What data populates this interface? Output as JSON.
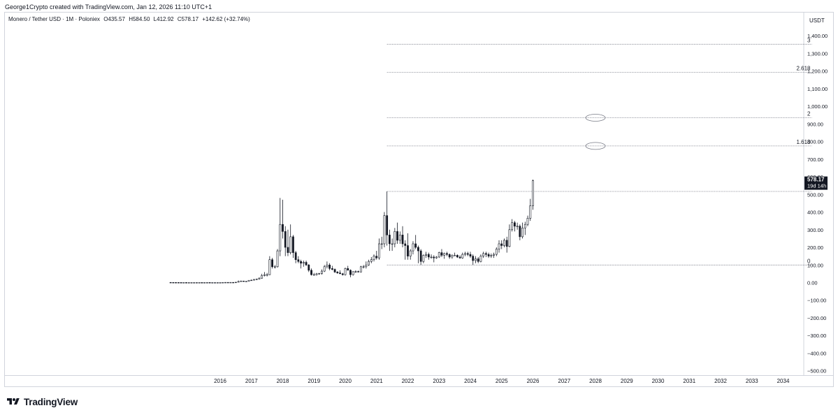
{
  "header": {
    "credit": "George1Crypto created with TradingView.com, Jan 12, 2026 11:10 UTC+1"
  },
  "legend": {
    "pair": "Monero / Tether USD · 1M · Poloniex",
    "open": "O435.57",
    "high": "H584.50",
    "low": "L412.92",
    "close": "C578.17",
    "change": "+142.62 (+32.74%)"
  },
  "price_label": {
    "value": "578.17",
    "countdown": "19d 14h"
  },
  "branding": {
    "name": "TradingView"
  },
  "colors": {
    "text": "#131722",
    "grid_border": "#d1d4dc",
    "fib_line": "#787b86",
    "price_tag_bg": "#131722"
  },
  "chart_data": {
    "type": "candlestick",
    "symbol": "Monero / Tether USD",
    "interval": "1M",
    "exchange": "Poloniex",
    "currency_label": "USDT",
    "ylim": [
      -520,
      1510
    ],
    "y_ticks": [
      -500,
      -400,
      -300,
      -200,
      -100,
      0,
      100,
      200,
      300,
      400,
      500,
      600,
      700,
      800,
      900,
      1000,
      1100,
      1200,
      1300,
      1400
    ],
    "y_tick_labels": [
      "−500.00",
      "−400.00",
      "−300.00",
      "−200.00",
      "−100.00",
      "0.00",
      "100.00",
      "200.00",
      "300.00",
      "400.00",
      "500.00",
      "600.00",
      "700.00",
      "800.00",
      "900.00",
      "1,000.00",
      "1,100.00",
      "1,200.00",
      "1,300.00",
      "1,400.00"
    ],
    "xlim": [
      "2013-05",
      "2035-01"
    ],
    "x_ticks": [
      "2016",
      "2017",
      "2018",
      "2019",
      "2020",
      "2021",
      "2022",
      "2023",
      "2024",
      "2025",
      "2026",
      "2027",
      "2028",
      "2029",
      "2030",
      "2031",
      "2032",
      "2033",
      "2034"
    ],
    "grid": false,
    "fib_extension": {
      "start": "2021-05",
      "end": "2034-12",
      "levels": [
        {
          "label": "0",
          "price": 100
        },
        {
          "label": "1",
          "price": 517
        },
        {
          "label": "1.618",
          "price": 775
        },
        {
          "label": "2",
          "price": 935
        },
        {
          "label": "2.618",
          "price": 1193
        },
        {
          "label": "3",
          "price": 1352
        }
      ]
    },
    "annotations": [
      {
        "type": "ellipse",
        "date": "2028-01",
        "price": 935
      },
      {
        "type": "ellipse",
        "date": "2028-01",
        "price": 775
      }
    ],
    "last_price": 578.17,
    "candles": [
      {
        "t": "2014-06",
        "o": 1.2,
        "h": 1.6,
        "l": 0.9,
        "c": 1.0
      },
      {
        "t": "2014-07",
        "o": 1.0,
        "h": 1.3,
        "l": 0.8,
        "c": 0.9
      },
      {
        "t": "2014-08",
        "o": 0.9,
        "h": 1.1,
        "l": 0.7,
        "c": 0.8
      },
      {
        "t": "2014-09",
        "o": 0.8,
        "h": 1.0,
        "l": 0.6,
        "c": 0.7
      },
      {
        "t": "2014-10",
        "o": 0.7,
        "h": 0.9,
        "l": 0.5,
        "c": 0.6
      },
      {
        "t": "2014-11",
        "o": 0.6,
        "h": 0.8,
        "l": 0.5,
        "c": 0.6
      },
      {
        "t": "2014-12",
        "o": 0.6,
        "h": 0.7,
        "l": 0.4,
        "c": 0.5
      },
      {
        "t": "2015-01",
        "o": 0.5,
        "h": 0.6,
        "l": 0.4,
        "c": 0.5
      },
      {
        "t": "2015-02",
        "o": 0.5,
        "h": 0.6,
        "l": 0.4,
        "c": 0.5
      },
      {
        "t": "2015-03",
        "o": 0.5,
        "h": 0.6,
        "l": 0.4,
        "c": 0.5
      },
      {
        "t": "2015-04",
        "o": 0.5,
        "h": 0.7,
        "l": 0.4,
        "c": 0.6
      },
      {
        "t": "2015-05",
        "o": 0.6,
        "h": 0.7,
        "l": 0.5,
        "c": 0.6
      },
      {
        "t": "2015-06",
        "o": 0.6,
        "h": 0.7,
        "l": 0.5,
        "c": 0.5
      },
      {
        "t": "2015-07",
        "o": 0.5,
        "h": 0.8,
        "l": 0.4,
        "c": 0.6
      },
      {
        "t": "2015-08",
        "o": 0.6,
        "h": 0.8,
        "l": 0.5,
        "c": 0.7
      },
      {
        "t": "2015-09",
        "o": 0.7,
        "h": 0.8,
        "l": 0.5,
        "c": 0.5
      },
      {
        "t": "2015-10",
        "o": 0.5,
        "h": 0.6,
        "l": 0.4,
        "c": 0.5
      },
      {
        "t": "2015-11",
        "o": 0.5,
        "h": 0.6,
        "l": 0.4,
        "c": 0.5
      },
      {
        "t": "2015-12",
        "o": 0.5,
        "h": 0.6,
        "l": 0.4,
        "c": 0.5
      },
      {
        "t": "2016-01",
        "o": 0.5,
        "h": 0.6,
        "l": 0.4,
        "c": 0.5
      },
      {
        "t": "2016-02",
        "o": 0.5,
        "h": 1.0,
        "l": 0.4,
        "c": 0.9
      },
      {
        "t": "2016-03",
        "o": 0.9,
        "h": 1.5,
        "l": 0.8,
        "c": 1.3
      },
      {
        "t": "2016-04",
        "o": 1.3,
        "h": 1.6,
        "l": 1.1,
        "c": 1.2
      },
      {
        "t": "2016-05",
        "o": 1.2,
        "h": 1.5,
        "l": 1.1,
        "c": 1.3
      },
      {
        "t": "2016-06",
        "o": 1.3,
        "h": 1.5,
        "l": 1.0,
        "c": 1.1
      },
      {
        "t": "2016-07",
        "o": 1.1,
        "h": 2.5,
        "l": 1.0,
        "c": 2.2
      },
      {
        "t": "2016-08",
        "o": 2.2,
        "h": 12,
        "l": 2.0,
        "c": 6
      },
      {
        "t": "2016-09",
        "o": 6,
        "h": 11,
        "l": 5,
        "c": 9
      },
      {
        "t": "2016-10",
        "o": 9,
        "h": 10,
        "l": 6,
        "c": 8
      },
      {
        "t": "2016-11",
        "o": 8,
        "h": 9,
        "l": 7,
        "c": 8
      },
      {
        "t": "2016-12",
        "o": 8,
        "h": 14,
        "l": 7,
        "c": 13
      },
      {
        "t": "2017-01",
        "o": 13,
        "h": 17,
        "l": 11,
        "c": 14
      },
      {
        "t": "2017-02",
        "o": 14,
        "h": 20,
        "l": 12,
        "c": 18
      },
      {
        "t": "2017-03",
        "o": 18,
        "h": 23,
        "l": 15,
        "c": 20
      },
      {
        "t": "2017-04",
        "o": 20,
        "h": 30,
        "l": 18,
        "c": 25
      },
      {
        "t": "2017-05",
        "o": 25,
        "h": 50,
        "l": 22,
        "c": 40
      },
      {
        "t": "2017-06",
        "o": 40,
        "h": 60,
        "l": 35,
        "c": 45
      },
      {
        "t": "2017-07",
        "o": 45,
        "h": 55,
        "l": 35,
        "c": 45
      },
      {
        "t": "2017-08",
        "o": 45,
        "h": 150,
        "l": 42,
        "c": 130
      },
      {
        "t": "2017-09",
        "o": 130,
        "h": 140,
        "l": 80,
        "c": 90
      },
      {
        "t": "2017-10",
        "o": 90,
        "h": 100,
        "l": 80,
        "c": 90
      },
      {
        "t": "2017-11",
        "o": 90,
        "h": 190,
        "l": 85,
        "c": 180
      },
      {
        "t": "2017-12",
        "o": 180,
        "h": 480,
        "l": 150,
        "c": 330
      },
      {
        "t": "2018-01",
        "o": 330,
        "h": 470,
        "l": 250,
        "c": 290
      },
      {
        "t": "2018-02",
        "o": 290,
        "h": 320,
        "l": 150,
        "c": 200
      },
      {
        "t": "2018-03",
        "o": 200,
        "h": 300,
        "l": 150,
        "c": 170
      },
      {
        "t": "2018-04",
        "o": 170,
        "h": 330,
        "l": 160,
        "c": 260
      },
      {
        "t": "2018-05",
        "o": 260,
        "h": 270,
        "l": 140,
        "c": 170
      },
      {
        "t": "2018-06",
        "o": 170,
        "h": 180,
        "l": 110,
        "c": 130
      },
      {
        "t": "2018-07",
        "o": 130,
        "h": 150,
        "l": 110,
        "c": 120
      },
      {
        "t": "2018-08",
        "o": 120,
        "h": 130,
        "l": 80,
        "c": 110
      },
      {
        "t": "2018-09",
        "o": 110,
        "h": 125,
        "l": 90,
        "c": 115
      },
      {
        "t": "2018-10",
        "o": 115,
        "h": 125,
        "l": 95,
        "c": 100
      },
      {
        "t": "2018-11",
        "o": 100,
        "h": 105,
        "l": 60,
        "c": 70
      },
      {
        "t": "2018-12",
        "o": 70,
        "h": 80,
        "l": 40,
        "c": 45
      },
      {
        "t": "2019-01",
        "o": 45,
        "h": 55,
        "l": 40,
        "c": 45
      },
      {
        "t": "2019-02",
        "o": 45,
        "h": 55,
        "l": 40,
        "c": 50
      },
      {
        "t": "2019-03",
        "o": 50,
        "h": 55,
        "l": 45,
        "c": 52
      },
      {
        "t": "2019-04",
        "o": 52,
        "h": 75,
        "l": 45,
        "c": 65
      },
      {
        "t": "2019-05",
        "o": 65,
        "h": 100,
        "l": 60,
        "c": 90
      },
      {
        "t": "2019-06",
        "o": 90,
        "h": 120,
        "l": 80,
        "c": 100
      },
      {
        "t": "2019-07",
        "o": 100,
        "h": 110,
        "l": 70,
        "c": 80
      },
      {
        "t": "2019-08",
        "o": 80,
        "h": 95,
        "l": 70,
        "c": 75
      },
      {
        "t": "2019-09",
        "o": 75,
        "h": 80,
        "l": 55,
        "c": 60
      },
      {
        "t": "2019-10",
        "o": 60,
        "h": 65,
        "l": 50,
        "c": 55
      },
      {
        "t": "2019-11",
        "o": 55,
        "h": 70,
        "l": 50,
        "c": 50
      },
      {
        "t": "2019-12",
        "o": 50,
        "h": 55,
        "l": 40,
        "c": 45
      },
      {
        "t": "2020-01",
        "o": 45,
        "h": 85,
        "l": 40,
        "c": 80
      },
      {
        "t": "2020-02",
        "o": 80,
        "h": 95,
        "l": 70,
        "c": 70
      },
      {
        "t": "2020-03",
        "o": 70,
        "h": 75,
        "l": 30,
        "c": 45
      },
      {
        "t": "2020-04",
        "o": 45,
        "h": 65,
        "l": 40,
        "c": 62
      },
      {
        "t": "2020-05",
        "o": 62,
        "h": 70,
        "l": 55,
        "c": 63
      },
      {
        "t": "2020-06",
        "o": 63,
        "h": 68,
        "l": 58,
        "c": 60
      },
      {
        "t": "2020-07",
        "o": 60,
        "h": 95,
        "l": 58,
        "c": 90
      },
      {
        "t": "2020-08",
        "o": 90,
        "h": 100,
        "l": 80,
        "c": 90
      },
      {
        "t": "2020-09",
        "o": 90,
        "h": 120,
        "l": 80,
        "c": 100
      },
      {
        "t": "2020-10",
        "o": 100,
        "h": 130,
        "l": 95,
        "c": 120
      },
      {
        "t": "2020-11",
        "o": 120,
        "h": 145,
        "l": 110,
        "c": 130
      },
      {
        "t": "2020-12",
        "o": 130,
        "h": 160,
        "l": 120,
        "c": 150
      },
      {
        "t": "2021-01",
        "o": 150,
        "h": 180,
        "l": 130,
        "c": 140
      },
      {
        "t": "2021-02",
        "o": 140,
        "h": 250,
        "l": 130,
        "c": 220
      },
      {
        "t": "2021-03",
        "o": 220,
        "h": 260,
        "l": 190,
        "c": 220
      },
      {
        "t": "2021-04",
        "o": 220,
        "h": 400,
        "l": 200,
        "c": 380
      },
      {
        "t": "2021-05",
        "o": 380,
        "h": 517,
        "l": 210,
        "c": 270
      },
      {
        "t": "2021-06",
        "o": 270,
        "h": 300,
        "l": 180,
        "c": 220
      },
      {
        "t": "2021-07",
        "o": 220,
        "h": 250,
        "l": 180,
        "c": 220
      },
      {
        "t": "2021-08",
        "o": 220,
        "h": 310,
        "l": 200,
        "c": 290
      },
      {
        "t": "2021-09",
        "o": 290,
        "h": 340,
        "l": 220,
        "c": 240
      },
      {
        "t": "2021-10",
        "o": 240,
        "h": 290,
        "l": 220,
        "c": 270
      },
      {
        "t": "2021-11",
        "o": 270,
        "h": 320,
        "l": 200,
        "c": 220
      },
      {
        "t": "2021-12",
        "o": 220,
        "h": 240,
        "l": 130,
        "c": 210
      },
      {
        "t": "2022-01",
        "o": 210,
        "h": 280,
        "l": 130,
        "c": 150
      },
      {
        "t": "2022-02",
        "o": 150,
        "h": 190,
        "l": 130,
        "c": 180
      },
      {
        "t": "2022-03",
        "o": 180,
        "h": 235,
        "l": 160,
        "c": 220
      },
      {
        "t": "2022-04",
        "o": 220,
        "h": 270,
        "l": 190,
        "c": 200
      },
      {
        "t": "2022-05",
        "o": 200,
        "h": 210,
        "l": 110,
        "c": 180
      },
      {
        "t": "2022-06",
        "o": 180,
        "h": 190,
        "l": 100,
        "c": 120
      },
      {
        "t": "2022-07",
        "o": 120,
        "h": 160,
        "l": 110,
        "c": 155
      },
      {
        "t": "2022-08",
        "o": 155,
        "h": 175,
        "l": 140,
        "c": 160
      },
      {
        "t": "2022-09",
        "o": 160,
        "h": 170,
        "l": 130,
        "c": 145
      },
      {
        "t": "2022-10",
        "o": 145,
        "h": 160,
        "l": 135,
        "c": 145
      },
      {
        "t": "2022-11",
        "o": 145,
        "h": 155,
        "l": 115,
        "c": 140
      },
      {
        "t": "2022-12",
        "o": 140,
        "h": 150,
        "l": 135,
        "c": 145
      },
      {
        "t": "2023-01",
        "o": 145,
        "h": 175,
        "l": 140,
        "c": 170
      },
      {
        "t": "2023-02",
        "o": 170,
        "h": 190,
        "l": 145,
        "c": 155
      },
      {
        "t": "2023-03",
        "o": 155,
        "h": 170,
        "l": 135,
        "c": 165
      },
      {
        "t": "2023-04",
        "o": 165,
        "h": 175,
        "l": 150,
        "c": 160
      },
      {
        "t": "2023-05",
        "o": 160,
        "h": 165,
        "l": 135,
        "c": 145
      },
      {
        "t": "2023-06",
        "o": 145,
        "h": 160,
        "l": 135,
        "c": 155
      },
      {
        "t": "2023-07",
        "o": 155,
        "h": 170,
        "l": 150,
        "c": 155
      },
      {
        "t": "2023-08",
        "o": 155,
        "h": 160,
        "l": 140,
        "c": 145
      },
      {
        "t": "2023-09",
        "o": 145,
        "h": 155,
        "l": 135,
        "c": 140
      },
      {
        "t": "2023-10",
        "o": 140,
        "h": 170,
        "l": 135,
        "c": 160
      },
      {
        "t": "2023-11",
        "o": 160,
        "h": 175,
        "l": 150,
        "c": 165
      },
      {
        "t": "2023-12",
        "o": 165,
        "h": 175,
        "l": 150,
        "c": 160
      },
      {
        "t": "2024-01",
        "o": 160,
        "h": 175,
        "l": 140,
        "c": 150
      },
      {
        "t": "2024-02",
        "o": 150,
        "h": 160,
        "l": 100,
        "c": 125
      },
      {
        "t": "2024-03",
        "o": 125,
        "h": 150,
        "l": 110,
        "c": 135
      },
      {
        "t": "2024-04",
        "o": 135,
        "h": 145,
        "l": 110,
        "c": 120
      },
      {
        "t": "2024-05",
        "o": 120,
        "h": 160,
        "l": 115,
        "c": 150
      },
      {
        "t": "2024-06",
        "o": 150,
        "h": 175,
        "l": 140,
        "c": 165
      },
      {
        "t": "2024-07",
        "o": 165,
        "h": 175,
        "l": 145,
        "c": 160
      },
      {
        "t": "2024-08",
        "o": 160,
        "h": 170,
        "l": 140,
        "c": 150
      },
      {
        "t": "2024-09",
        "o": 150,
        "h": 165,
        "l": 140,
        "c": 155
      },
      {
        "t": "2024-10",
        "o": 155,
        "h": 170,
        "l": 140,
        "c": 160
      },
      {
        "t": "2024-11",
        "o": 160,
        "h": 200,
        "l": 150,
        "c": 190
      },
      {
        "t": "2024-12",
        "o": 190,
        "h": 240,
        "l": 170,
        "c": 220
      },
      {
        "t": "2025-01",
        "o": 220,
        "h": 240,
        "l": 190,
        "c": 210
      },
      {
        "t": "2025-02",
        "o": 210,
        "h": 250,
        "l": 200,
        "c": 240
      },
      {
        "t": "2025-03",
        "o": 240,
        "h": 260,
        "l": 170,
        "c": 205
      },
      {
        "t": "2025-04",
        "o": 205,
        "h": 330,
        "l": 200,
        "c": 300
      },
      {
        "t": "2025-05",
        "o": 300,
        "h": 360,
        "l": 290,
        "c": 340
      },
      {
        "t": "2025-06",
        "o": 340,
        "h": 350,
        "l": 290,
        "c": 320
      },
      {
        "t": "2025-07",
        "o": 320,
        "h": 340,
        "l": 300,
        "c": 320
      },
      {
        "t": "2025-08",
        "o": 320,
        "h": 330,
        "l": 240,
        "c": 260
      },
      {
        "t": "2025-09",
        "o": 260,
        "h": 340,
        "l": 250,
        "c": 310
      },
      {
        "t": "2025-10",
        "o": 310,
        "h": 345,
        "l": 270,
        "c": 330
      },
      {
        "t": "2025-11",
        "o": 330,
        "h": 380,
        "l": 320,
        "c": 365
      },
      {
        "t": "2025-12",
        "o": 365,
        "h": 475,
        "l": 350,
        "c": 435.57
      },
      {
        "t": "2026-01",
        "o": 435.57,
        "h": 584.5,
        "l": 412.92,
        "c": 578.17
      }
    ]
  }
}
